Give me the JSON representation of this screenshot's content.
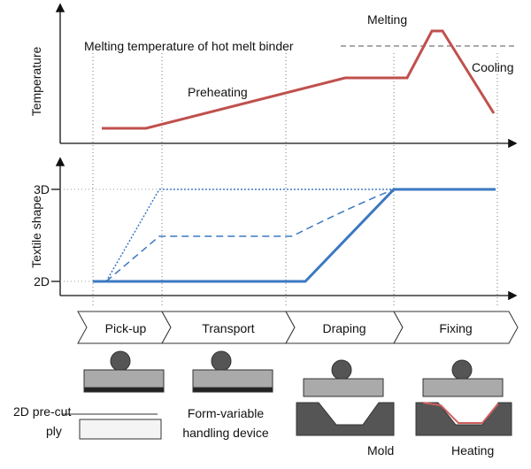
{
  "top_panel": {
    "axis_label": "Temperature",
    "reference_line": "Melting temperature of hot melt binder",
    "annotations": [
      "Melting",
      "Preheating",
      "Cooling"
    ]
  },
  "bottom_panel": {
    "axis_label": "Textile shape",
    "levels": [
      "3D",
      "2D"
    ]
  },
  "stages": [
    "Pick-up",
    "Transport",
    "Draping",
    "Fixing"
  ],
  "labels": {
    "ply": [
      "2D pre-cut",
      "ply"
    ],
    "device": [
      "Form-variable",
      "handling device"
    ],
    "mold": "Mold",
    "heating": "Heating"
  }
}
